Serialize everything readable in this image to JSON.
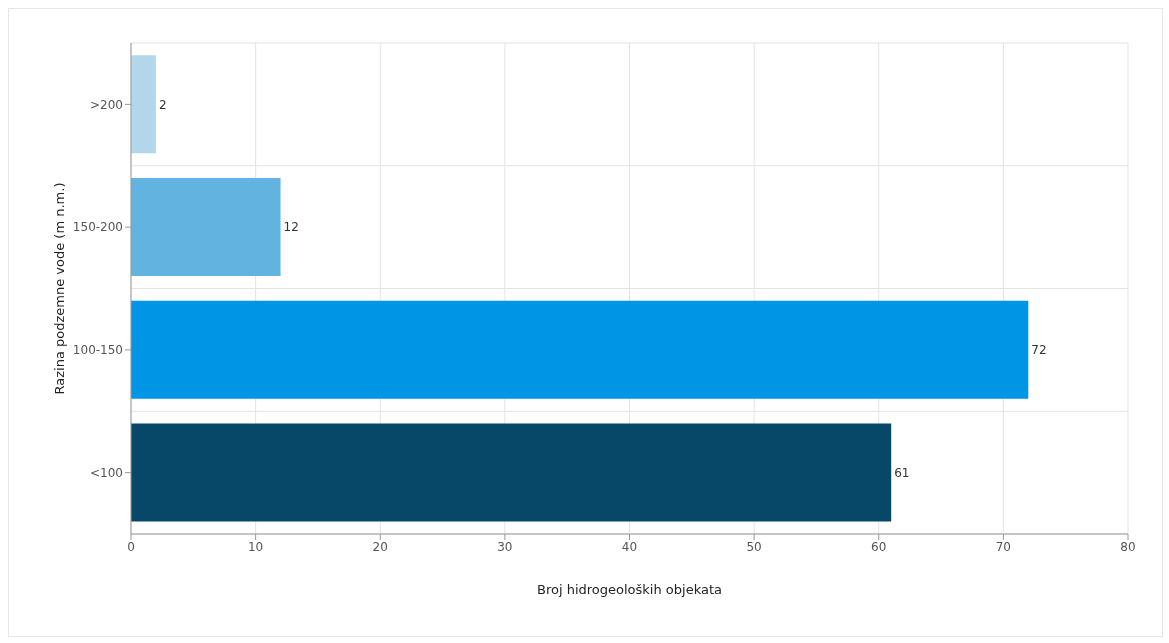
{
  "chart_data": {
    "type": "bar",
    "orientation": "horizontal",
    "xlabel": "Broj hidrogeoloških objekata",
    "ylabel": "Razina podzemne vode (m n.m.)",
    "categories": [
      ">200",
      "150-200",
      "100-150",
      "<100"
    ],
    "values": [
      2,
      12,
      72,
      61
    ],
    "colors": [
      "#b3d7ea",
      "#63b3e0",
      "#0095e5",
      "#074868"
    ],
    "xlim": [
      0,
      80
    ],
    "xticks": [
      0,
      10,
      20,
      30,
      40,
      50,
      60,
      70,
      80
    ],
    "grid": true,
    "data_labels": true
  }
}
